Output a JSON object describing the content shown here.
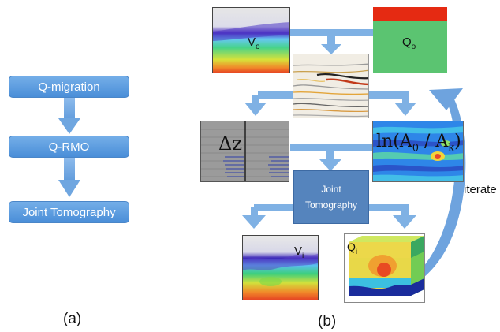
{
  "panel_a": {
    "label": "(a)",
    "steps": [
      "Q-migration",
      "Q-RMO",
      "Joint Tomography"
    ]
  },
  "panel_b": {
    "label": "(b)",
    "v0_label": "V",
    "v0_sub": "o",
    "q0_label": "Q",
    "q0_sub": "o",
    "dz_label": "Δz",
    "ln_pre": "ln(A",
    "ln_sub0": "0",
    "ln_mid": " / A",
    "ln_subk": "k",
    "ln_post": ")",
    "joint_line1": "Joint",
    "joint_line2": "Tomography",
    "vi_label": "V",
    "vi_sub": "i",
    "qi_label": "Q",
    "qi_sub": "i",
    "iterate_label": "iterate"
  },
  "colors": {
    "step_box": "#5b9be0",
    "arrow": "#7aaee3",
    "joint_box": "#5584bd",
    "q0_red": "#e52a12",
    "q0_green": "#5bc471"
  }
}
